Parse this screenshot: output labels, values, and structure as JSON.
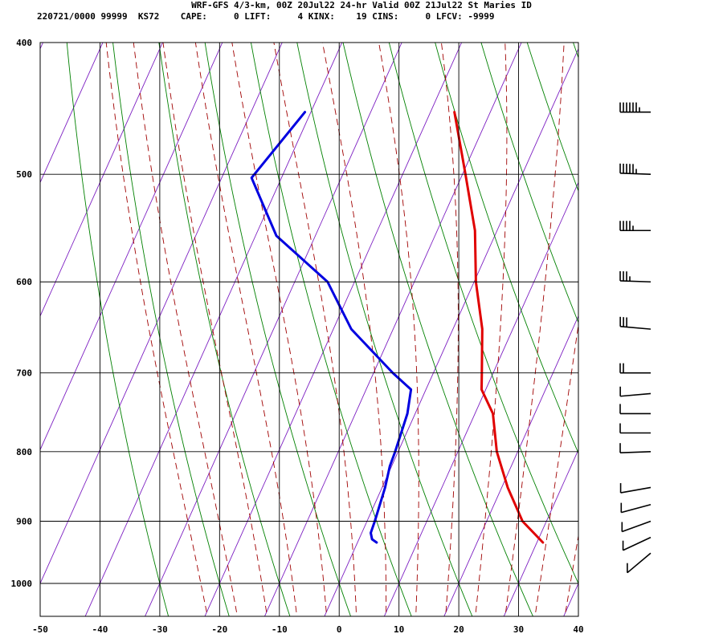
{
  "header": {
    "title": "WRF-GFS 4/3-km, 00Z 20Jul22 24-hr Valid 00Z 21Jul22 St Maries ID",
    "info": "220721/0000 99999  KS72    CAPE:     0 LIFT:     4 KINX:    19 CINS:     0 LFCV: -9999"
  },
  "chart_data": {
    "type": "line",
    "title": "WRF-GFS 4/3-km, 00Z 20Jul22 24-hr Valid 00Z 21Jul22 St Maries ID",
    "xlabel": "",
    "ylabel": "",
    "x_ticks": [
      -50,
      -40,
      -30,
      -20,
      -10,
      0,
      10,
      20,
      30,
      40
    ],
    "y_ticks": [
      400,
      500,
      600,
      700,
      800,
      900,
      1000
    ],
    "xlim": [
      -50,
      40
    ],
    "ylim_pressure": [
      1050,
      400
    ],
    "y_scale": "log-pressure",
    "grid": true,
    "colors": {
      "temperature": "#e00000",
      "dewpoint": "#0000e0",
      "isotherm": "#7d1fc2",
      "dry_adiabat": "#008000",
      "moist_adiabat": "#a00000",
      "grid": "#000000"
    },
    "series": [
      {
        "key": "temperature",
        "points": [
          {
            "p": 450,
            "t": -16.0
          },
          {
            "p": 500,
            "t": -9.5
          },
          {
            "p": 550,
            "t": -3.7
          },
          {
            "p": 600,
            "t": 0.3
          },
          {
            "p": 650,
            "t": 4.9
          },
          {
            "p": 700,
            "t": 8.1
          },
          {
            "p": 720,
            "t": 9.3
          },
          {
            "p": 750,
            "t": 13.0
          },
          {
            "p": 800,
            "t": 16.5
          },
          {
            "p": 850,
            "t": 21.0
          },
          {
            "p": 900,
            "t": 26.0
          },
          {
            "p": 933,
            "t": 31.0
          }
        ]
      },
      {
        "key": "dewpoint",
        "points": [
          {
            "p": 450,
            "t": -41.0
          },
          {
            "p": 503,
            "t": -45.0
          },
          {
            "p": 555,
            "t": -36.5
          },
          {
            "p": 600,
            "t": -24.5
          },
          {
            "p": 650,
            "t": -17.0
          },
          {
            "p": 700,
            "t": -6.8
          },
          {
            "p": 720,
            "t": -2.5
          },
          {
            "p": 750,
            "t": -1.3
          },
          {
            "p": 800,
            "t": -0.5
          },
          {
            "p": 820,
            "t": -0.3
          },
          {
            "p": 850,
            "t": 0.5
          },
          {
            "p": 900,
            "t": 1.3
          },
          {
            "p": 918,
            "t": 1.5
          },
          {
            "p": 928,
            "t": 2.2
          },
          {
            "p": 933,
            "t": 3.2
          }
        ]
      }
    ],
    "wind_barbs": [
      {
        "p": 450,
        "speed_kt": 65,
        "dir": 270
      },
      {
        "p": 500,
        "speed_kt": 55,
        "dir": 272
      },
      {
        "p": 550,
        "speed_kt": 45,
        "dir": 270
      },
      {
        "p": 600,
        "speed_kt": 35,
        "dir": 272
      },
      {
        "p": 650,
        "speed_kt": 30,
        "dir": 275
      },
      {
        "p": 700,
        "speed_kt": 20,
        "dir": 270
      },
      {
        "p": 725,
        "speed_kt": 10,
        "dir": 265
      },
      {
        "p": 750,
        "speed_kt": 10,
        "dir": 270
      },
      {
        "p": 775,
        "speed_kt": 10,
        "dir": 270
      },
      {
        "p": 800,
        "speed_kt": 10,
        "dir": 268
      },
      {
        "p": 850,
        "speed_kt": 10,
        "dir": 260
      },
      {
        "p": 875,
        "speed_kt": 10,
        "dir": 255
      },
      {
        "p": 900,
        "speed_kt": 10,
        "dir": 250
      },
      {
        "p": 925,
        "speed_kt": 10,
        "dir": 245
      },
      {
        "p": 950,
        "speed_kt": 10,
        "dir": 230
      }
    ]
  }
}
